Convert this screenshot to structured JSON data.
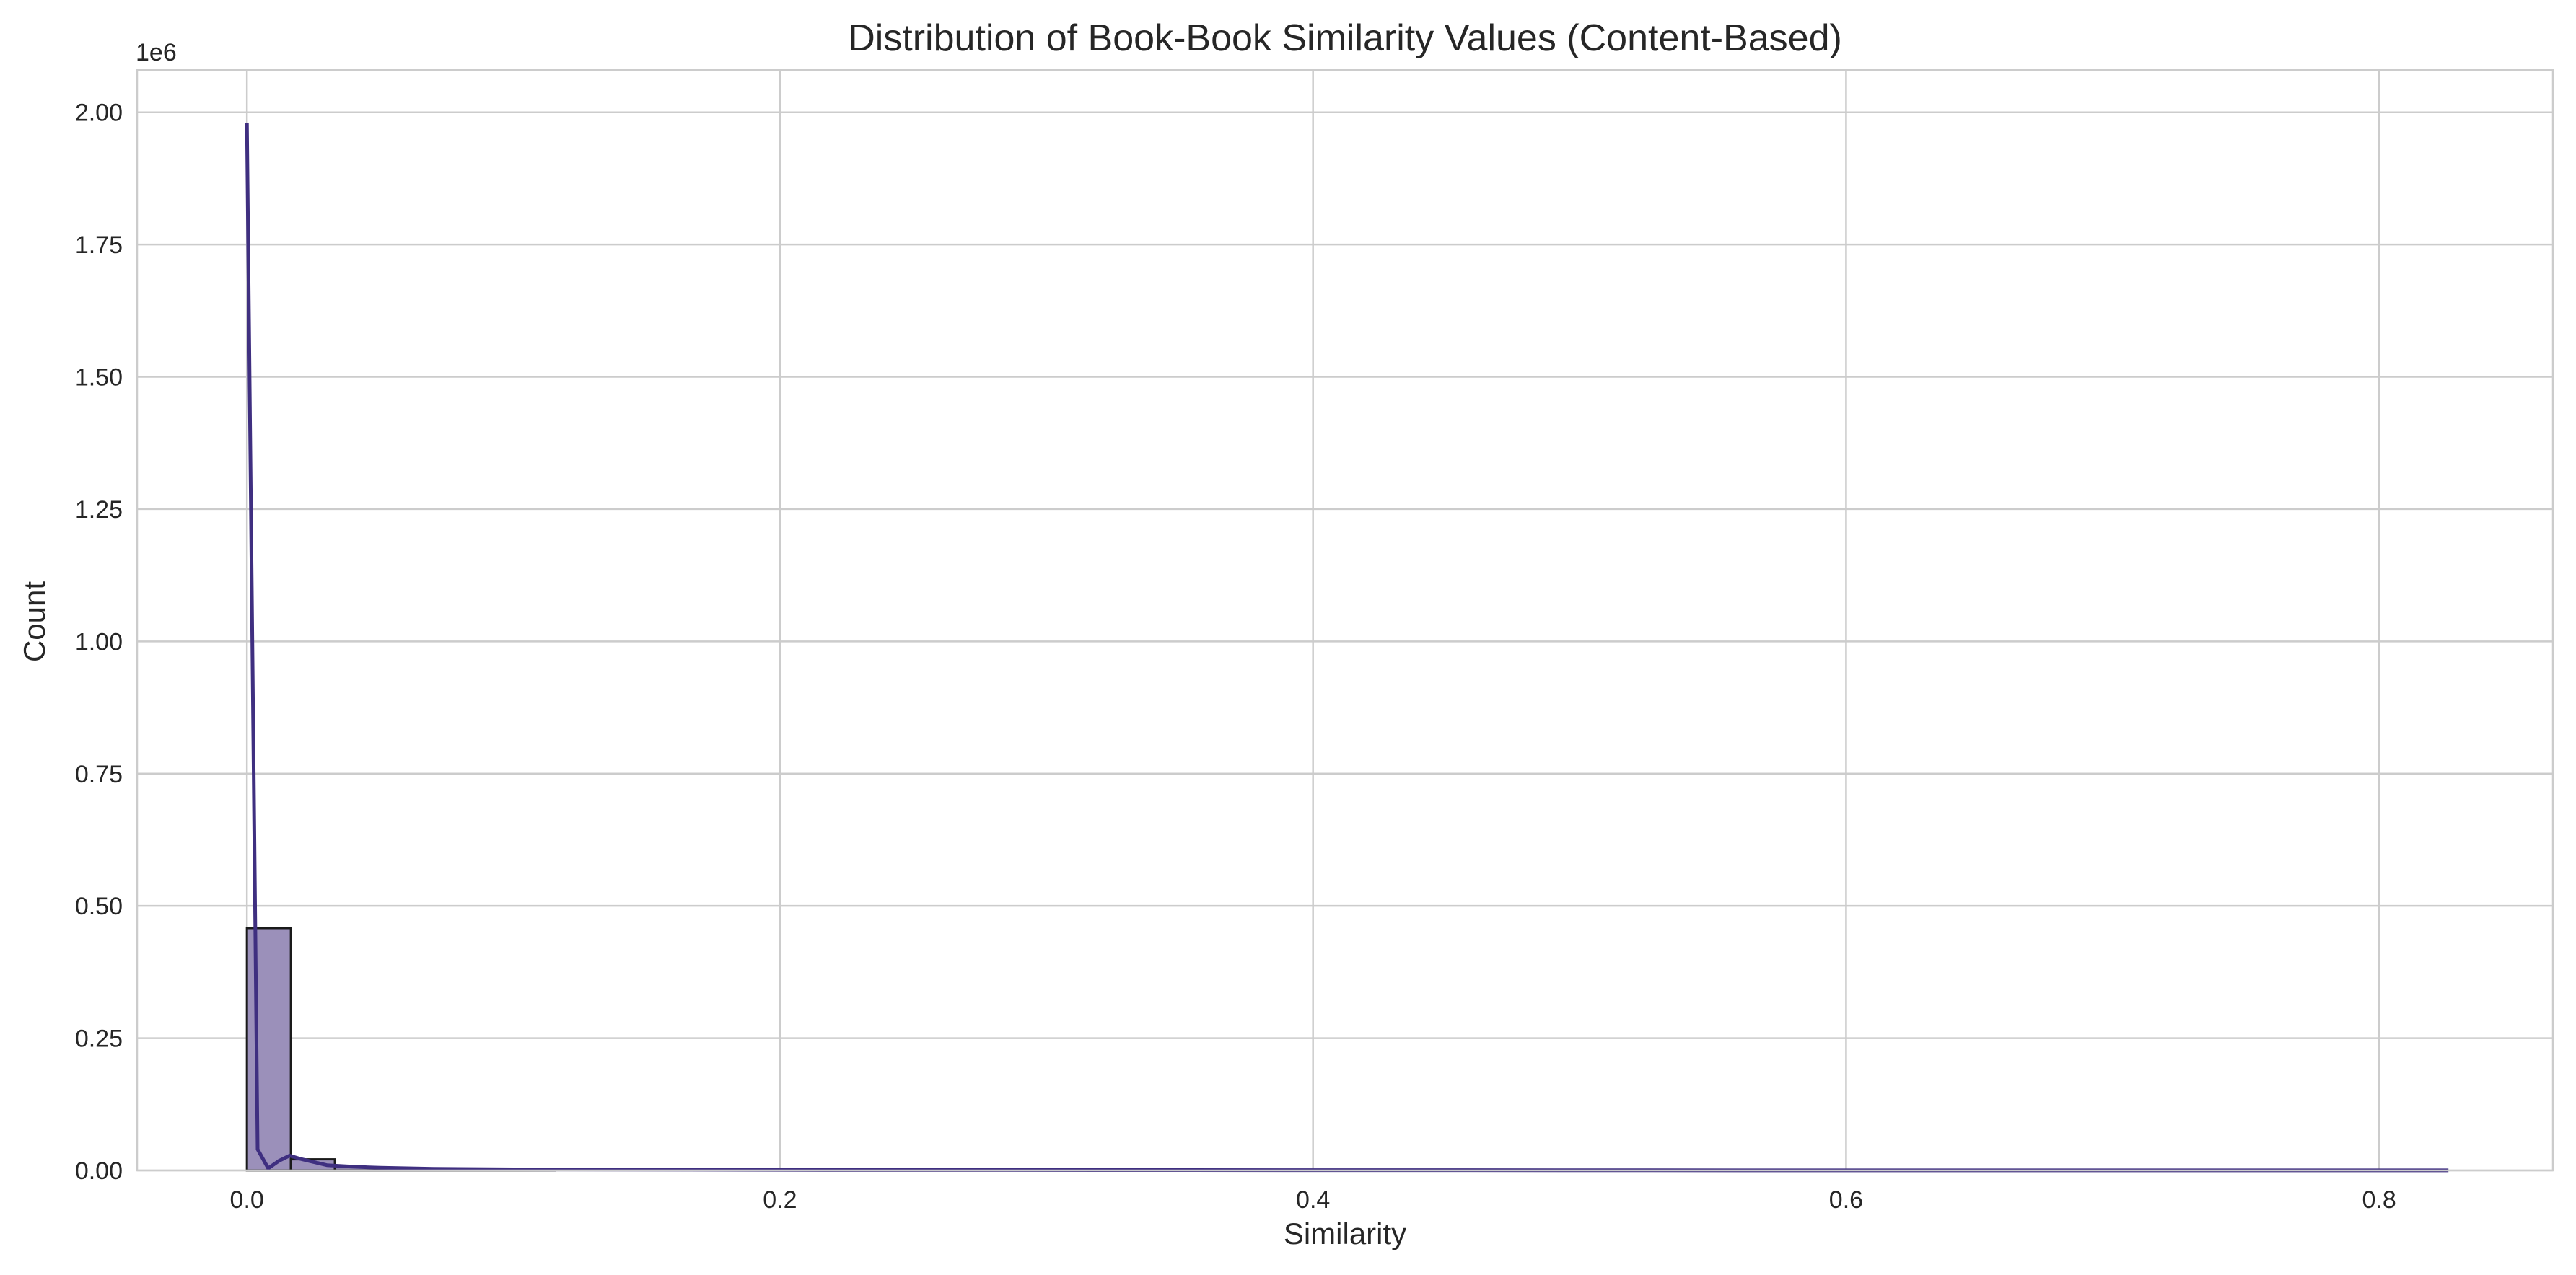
{
  "chart_data": {
    "type": "bar",
    "title": "Distribution of Book-Book Similarity Values (Content-Based)",
    "xlabel": "Similarity",
    "ylabel": "Count",
    "y_offset_label": "1e6",
    "xlim": [
      -0.0412,
      0.8652
    ],
    "ylim": [
      0,
      2.08
    ],
    "y_unit": 1000000,
    "grid": true,
    "legend": "none",
    "x_ticks": [
      0.0,
      0.2,
      0.4,
      0.6,
      0.8
    ],
    "x_tick_labels": [
      "0.0",
      "0.2",
      "0.4",
      "0.6",
      "0.8"
    ],
    "y_ticks": [
      0.0,
      0.25,
      0.5,
      0.75,
      1.0,
      1.25,
      1.5,
      1.75,
      2.0
    ],
    "y_tick_labels": [
      "0.00",
      "0.25",
      "0.50",
      "0.75",
      "1.00",
      "1.25",
      "1.50",
      "1.75",
      "2.00"
    ],
    "histogram": {
      "bin_width": 0.0165,
      "bins": [
        {
          "x0": 0.0,
          "x1": 0.0165,
          "count": 0.458
        },
        {
          "x0": 0.0165,
          "x1": 0.033,
          "count": 0.021
        },
        {
          "x0": 0.033,
          "x1": 0.0495,
          "count": 0.006
        },
        {
          "x0": 0.0495,
          "x1": 0.066,
          "count": 0.003
        },
        {
          "x0": 0.066,
          "x1": 0.0825,
          "count": 0.002
        },
        {
          "x0": 0.0825,
          "x1": 0.099,
          "count": 0.001
        },
        {
          "x0": 0.099,
          "x1": 0.1155,
          "count": 0.001
        }
      ]
    },
    "kde": {
      "x": [
        0.0,
        0.004,
        0.008,
        0.012,
        0.016,
        0.02,
        0.025,
        0.03,
        0.04,
        0.05,
        0.07,
        0.1,
        0.2,
        0.4,
        0.6,
        0.826
      ],
      "y": [
        1.98,
        0.04,
        0.004,
        0.018,
        0.028,
        0.022,
        0.016,
        0.01,
        0.007,
        0.005,
        0.003,
        0.002,
        0.001,
        0.0005,
        0.0002,
        0.0001
      ]
    },
    "colors": {
      "bar_fill": "#9b90ba",
      "bar_edge": "#1a1a1a",
      "kde_line": "#3f2f80",
      "grid": "#cccccc",
      "spine": "#cccccc"
    }
  }
}
